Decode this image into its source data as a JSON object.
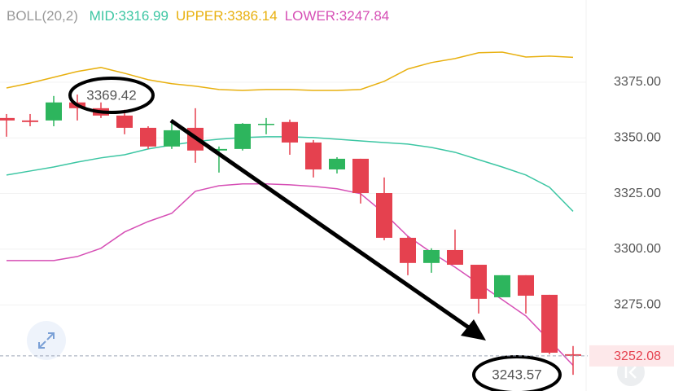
{
  "chart_data": {
    "type": "candlestick",
    "indicator": "BOLL(20,2)",
    "candles": {
      "open": [
        3358.9,
        3357.8,
        3357.8,
        3365.9,
        3363.3,
        3360.0,
        3354.5,
        3346.1,
        3354.5,
        3344.3,
        3345.0,
        3356.0,
        3357.1,
        3347.9,
        3335.8,
        3340.6,
        3325.2,
        3305.1,
        3293.8,
        3299.6,
        3293.0,
        3278.4,
        3288.3,
        3279.5,
        3252.8
      ],
      "high": [
        3360.7,
        3360.7,
        3368.8,
        3369.42,
        3365.9,
        3362.6,
        3355.2,
        3357.1,
        3363.3,
        3346.1,
        3356.6,
        3358.9,
        3358.2,
        3349.0,
        3341.3,
        3340.6,
        3332.2,
        3305.8,
        3300.4,
        3308.8,
        3293.0,
        3288.3,
        3288.3,
        3279.5,
        3256.5
      ],
      "low": [
        3350.5,
        3355.2,
        3355.2,
        3357.8,
        3358.9,
        3351.6,
        3345.0,
        3345.0,
        3338.8,
        3334.4,
        3344.3,
        3351.6,
        3342.4,
        3332.2,
        3334.0,
        3320.5,
        3304.0,
        3288.3,
        3289.4,
        3293.0,
        3271.1,
        3278.4,
        3271.1,
        3252.8,
        3243.57
      ],
      "close": [
        3357.8,
        3357.1,
        3365.9,
        3363.3,
        3360.0,
        3354.5,
        3346.1,
        3353.4,
        3344.3,
        3345.0,
        3356.3,
        3356.3,
        3347.9,
        3335.8,
        3340.6,
        3325.2,
        3305.1,
        3293.8,
        3299.6,
        3293.0,
        3277.7,
        3288.3,
        3279.1,
        3253.5,
        3252.08
      ]
    },
    "up_color": "#2db55d",
    "down_color": "#e5414f",
    "series": [
      {
        "name": "MID:",
        "color": "#3cc6a3",
        "values": [
          3333.3,
          3335.1,
          3336.9,
          3339.1,
          3341.0,
          3342.4,
          3345.0,
          3346.8,
          3348.3,
          3349.4,
          3350.1,
          3350.5,
          3350.5,
          3350.1,
          3349.4,
          3348.6,
          3347.9,
          3347.2,
          3345.7,
          3343.5,
          3340.2,
          3336.9,
          3333.3,
          3327.8,
          3316.99
        ]
      },
      {
        "name": "UPPER:",
        "color": "#e8b00f",
        "values": [
          3372.4,
          3374.6,
          3377.2,
          3379.8,
          3381.6,
          3379.0,
          3376.1,
          3374.3,
          3373.2,
          3371.7,
          3371.3,
          3371.7,
          3371.7,
          3371.3,
          3371.3,
          3371.7,
          3375.4,
          3380.9,
          3383.8,
          3385.6,
          3388.2,
          3388.5,
          3386.3,
          3386.7,
          3386.14
        ]
      },
      {
        "name": "LOWER:",
        "color": "#d64fb5",
        "values": [
          3294.9,
          3294.9,
          3294.9,
          3296.7,
          3300.4,
          3307.7,
          3312.4,
          3316.1,
          3326.0,
          3328.5,
          3329.3,
          3329.3,
          3328.9,
          3328.2,
          3327.1,
          3324.9,
          3316.1,
          3305.8,
          3298.5,
          3291.9,
          3284.6,
          3277.3,
          3270.0,
          3259.0,
          3247.84
        ]
      }
    ],
    "ylim": [
      3236.3,
      3411.9
    ],
    "yticks": [
      {
        "value": 3275,
        "label": "3275.00"
      },
      {
        "value": 3300,
        "label": "3300.00"
      },
      {
        "value": 3325,
        "label": "3325.00"
      },
      {
        "value": 3350,
        "label": "3350.00"
      },
      {
        "value": 3375,
        "label": "3375.00"
      }
    ],
    "grid": true
  }
}
